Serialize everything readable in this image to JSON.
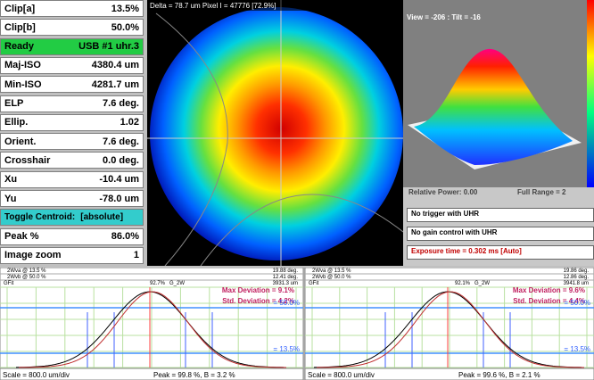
{
  "left_panel": {
    "rows": [
      {
        "label": "Clip[a]",
        "value": "13.5%"
      },
      {
        "label": "Clip[b]",
        "value": "50.0%"
      },
      {
        "label": "Ready",
        "value": "USB #1 uhr.3"
      },
      {
        "label": "Maj-ISO",
        "value": "4380.4 um"
      },
      {
        "label": "Min-ISO",
        "value": "4281.7 um"
      },
      {
        "label": "ELP",
        "value": "7.6 deg."
      },
      {
        "label": "Ellip.",
        "value": "1.02"
      },
      {
        "label": "Orient.",
        "value": "7.6 deg."
      },
      {
        "label": "Crosshair",
        "value": "0.0 deg."
      },
      {
        "label": "Xu",
        "value": "-10.4 um"
      },
      {
        "label": "Yu",
        "value": "-78.0 um"
      },
      {
        "label": "Toggle Centroid:",
        "value": "[absolute]"
      },
      {
        "label": "Peak %",
        "value": "86.0%"
      },
      {
        "label": "Image zoom",
        "value": "1"
      }
    ]
  },
  "beam_image": {
    "header": "Delta = 78.7 um Pixel I = 47776 [72.9%]"
  },
  "view_3d": {
    "header": "View = -206 : Tilt = -16",
    "relative_power": "Relative Power: 0.00",
    "full_range": "Full Range = 2",
    "controls": [
      "No trigger with UHR",
      "No gain control with UHR",
      "Exposure time = 0.302 ms [Auto]"
    ]
  },
  "profiles": [
    {
      "rows": [
        [
          "2Wva @ 13.5 %",
          "19.88 deg."
        ],
        [
          "2Wvb @ 50.0 %",
          "12.41 deg."
        ]
      ],
      "gfit": "GFit",
      "gfit_value": "92.7%",
      "fit_label": "G_2W",
      "fit_value": "3931.3 um",
      "max_dev": "Max Deviation = 9.1%",
      "std_dev": "Std. Deviation = 4.2%",
      "level_b": "= 50.0%",
      "level_a": "= 13.5%",
      "scale": "Scale = 800.0 um/div",
      "peak": "Peak = 99.8 %, B = 3.2 %"
    },
    {
      "rows": [
        [
          "2Wva @ 13.5 %",
          "19.86 deg."
        ],
        [
          "2Wvb @ 50.0 %",
          "12.86 deg."
        ]
      ],
      "gfit": "GFit",
      "gfit_value": "92.1%",
      "fit_label": "G_2W",
      "fit_value": "3941.8 um",
      "max_dev": "Max Deviation = 9.6%",
      "std_dev": "Std. Deviation = 4.4%",
      "level_b": "= 50.0%",
      "level_a": "= 13.5%",
      "scale": "Scale = 800.0 um/div",
      "peak": "Peak = 99.6 %, B = 2.1 %"
    }
  ]
}
